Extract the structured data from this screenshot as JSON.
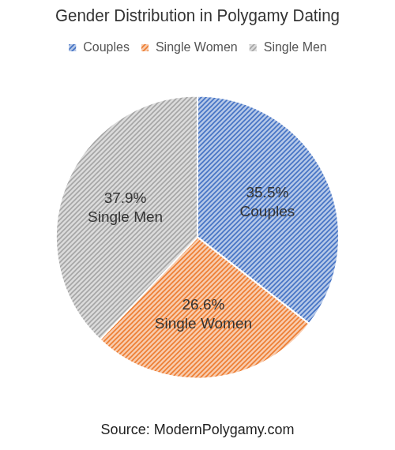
{
  "chart_data": {
    "type": "pie",
    "title": "Gender Distribution in Polygamy Dating",
    "caption": "Source: ModernPolygamy.com",
    "categories": [
      "Couples",
      "Single Women",
      "Single Men"
    ],
    "values": [
      35.5,
      26.6,
      37.9
    ],
    "value_labels": [
      "35.5%",
      "26.6%",
      "37.9%"
    ],
    "colors": [
      "#4472c4",
      "#ed7d31",
      "#a5a5a5"
    ],
    "legend": "top",
    "data_labels": true
  }
}
